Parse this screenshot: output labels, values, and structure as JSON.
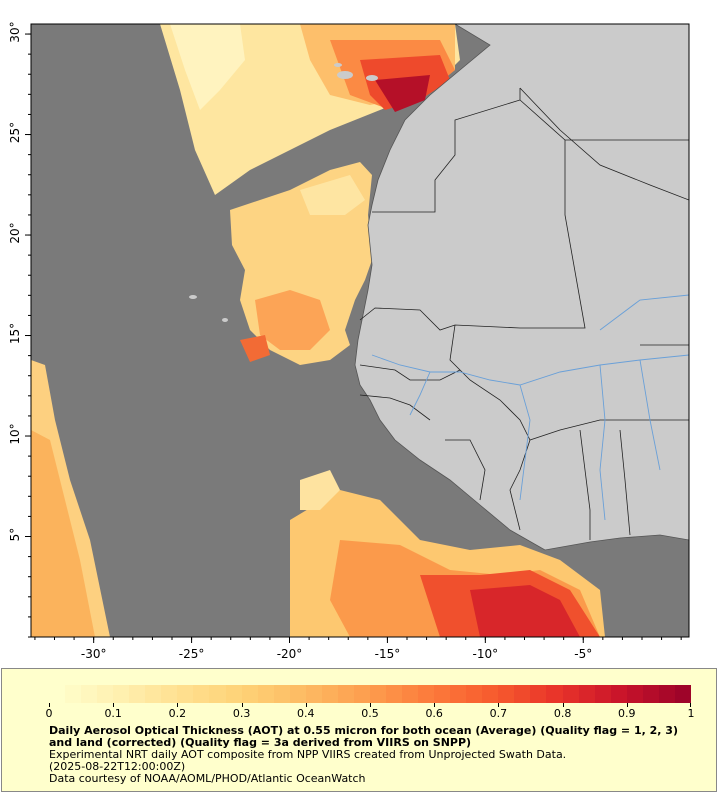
{
  "map": {
    "x_ticks": [
      "-30°",
      "-25°",
      "-20°",
      "-15°",
      "-10°",
      "-5°"
    ],
    "x_tick_values": [
      -30,
      -25,
      -20,
      -15,
      -10,
      -5
    ],
    "y_ticks": [
      "30°",
      "25°",
      "20°",
      "15°",
      "10°",
      "5°"
    ],
    "y_tick_values": [
      30,
      25,
      20,
      15,
      10,
      5
    ],
    "lon_range": [
      -33.2,
      0.4
    ],
    "lat_range": [
      0,
      30.5
    ],
    "colors": {
      "ocean_nodata": "#7a7a7a",
      "land": "#cbcbcb",
      "rivers": "#6aa0d8",
      "borders": "#222222"
    }
  },
  "legend": {
    "colorbar_ticks": [
      "0",
      "0.1",
      "0.2",
      "0.3",
      "0.4",
      "0.5",
      "0.6",
      "0.7",
      "0.8",
      "0.9",
      "1"
    ],
    "colorbar_range": [
      0,
      1
    ],
    "colorbar_colors": [
      "#ffffcc",
      "#fff0b0",
      "#ffe08f",
      "#fed176",
      "#fdb962",
      "#fd9c4d",
      "#fc7a3b",
      "#f75b2e",
      "#e8332a",
      "#c9142a",
      "#9e0429"
    ],
    "title": "Daily Aerosol Optical Thickness (AOT) at 0.55 micron for both ocean (Average) (Quality flag = 1, 2, 3) and land (corrected) (Quality flag = 3a derived from VIIRS on SNPP)",
    "line1": "Experimental NRT daily AOT composite from NPP VIIRS created from Unprojected Swath Data.",
    "line2": "(2025-08-22T12:00:00Z)",
    "line3": "Data courtesy of NOAA/AOML/PHOD/Atlantic OceanWatch"
  }
}
